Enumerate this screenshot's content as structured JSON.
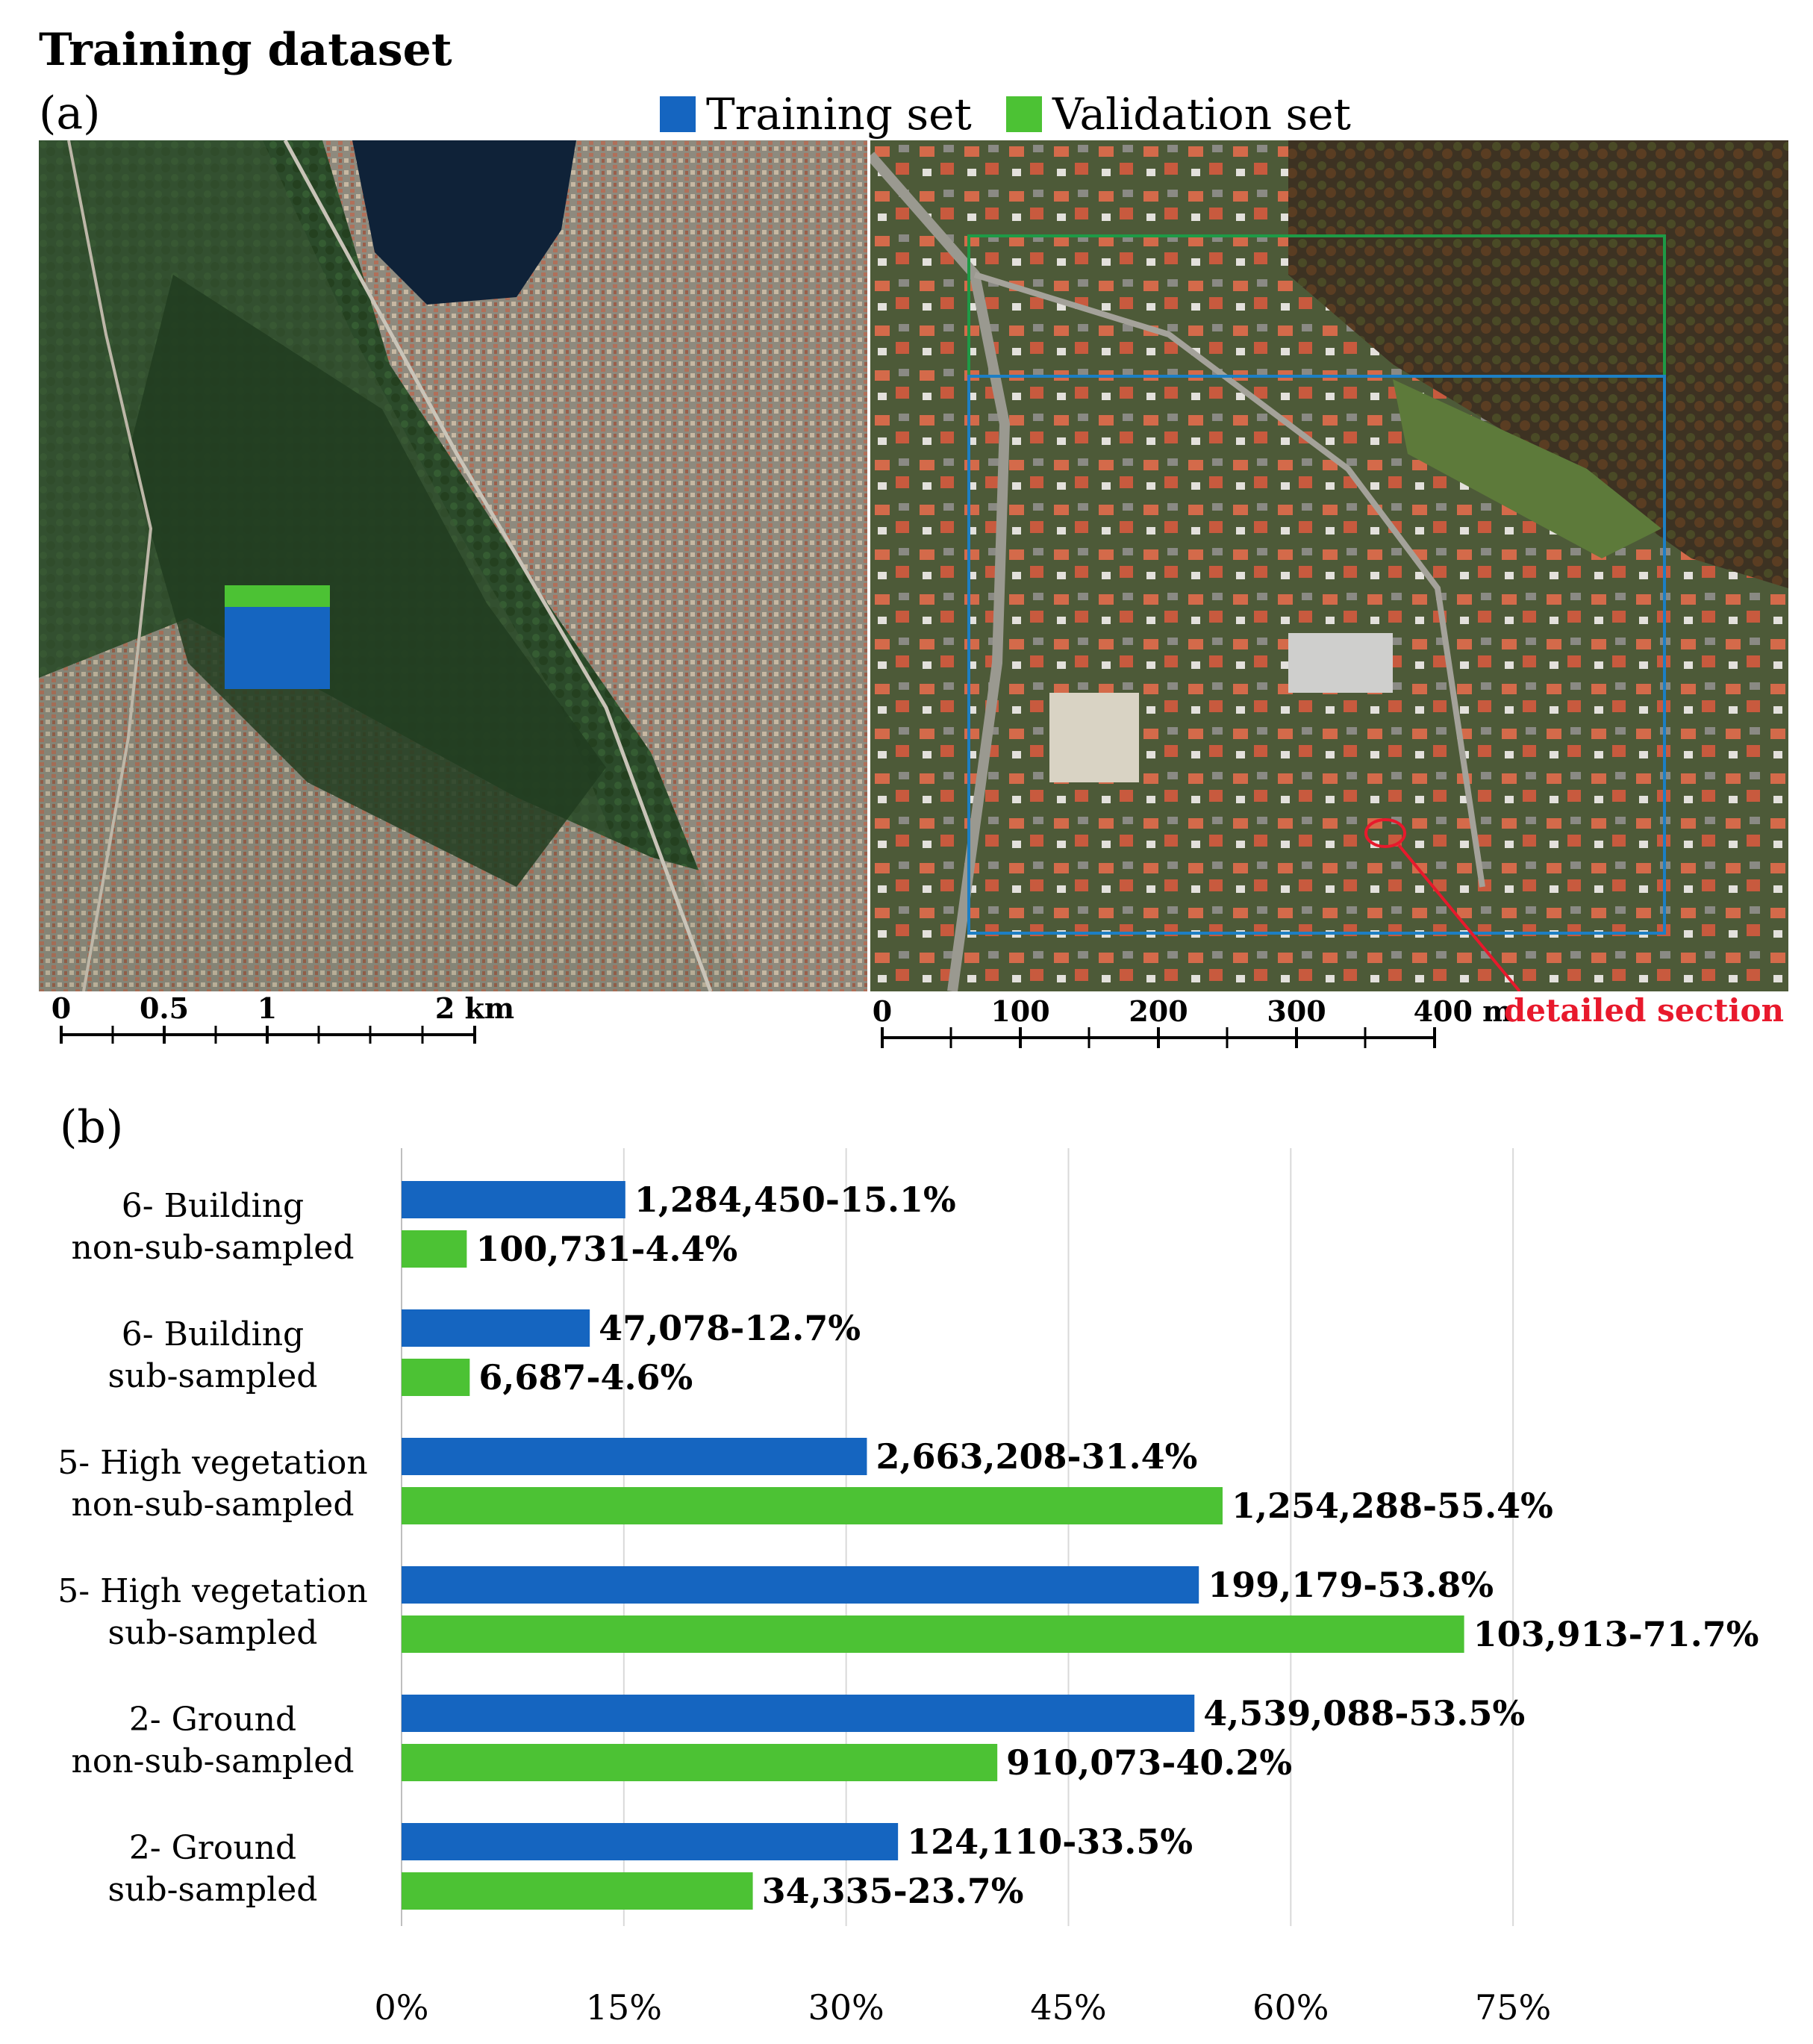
{
  "figure": {
    "title": "Training dataset",
    "panel_a": "(a)",
    "panel_b": "(b)"
  },
  "legend": [
    {
      "label": "Training set",
      "color": "#1565c0"
    },
    {
      "label": "Validation set",
      "color": "#4cc234"
    }
  ],
  "maps": {
    "overview": {
      "scale_labels": [
        "0",
        "0.5",
        "1",
        "2 km"
      ]
    },
    "detail": {
      "scale_labels": [
        "0",
        "100",
        "200",
        "300",
        "400 m"
      ],
      "annotation": "detailed section",
      "annotation_color": "#e8192c"
    }
  },
  "chart_data": {
    "type": "bar",
    "orientation": "horizontal",
    "categories": [
      "6- Building\nnon-sub-sampled",
      "6- Building\nsub-sampled",
      "5- High vegetation\nnon-sub-sampled",
      "5- High vegetation\nsub-sampled",
      "2- Ground\nnon-sub-sampled",
      "2- Ground\nsub-sampled"
    ],
    "series": [
      {
        "name": "Training set",
        "color": "#1565c0",
        "values": [
          15.1,
          12.7,
          31.4,
          53.8,
          53.5,
          33.5
        ],
        "labels": [
          "1,284,450-15.1%",
          "47,078-12.7%",
          "2,663,208-31.4%",
          "199,179-53.8%",
          "4,539,088-53.5%",
          "124,110-33.5%"
        ]
      },
      {
        "name": "Validation set",
        "color": "#4cc234",
        "values": [
          4.4,
          4.6,
          55.4,
          71.7,
          40.2,
          23.7
        ],
        "labels": [
          "100,731-4.4%",
          "6,687-4.6%",
          "1,254,288-55.4%",
          "103,913-71.7%",
          "910,073-40.2%",
          "34,335-23.7%"
        ]
      }
    ],
    "x_ticks": [
      "0%",
      "15%",
      "30%",
      "45%",
      "60%",
      "75%"
    ],
    "x_tick_values": [
      0,
      15,
      30,
      45,
      60,
      75
    ],
    "xlim": [
      0,
      75
    ],
    "grid": true,
    "legend": "top"
  }
}
